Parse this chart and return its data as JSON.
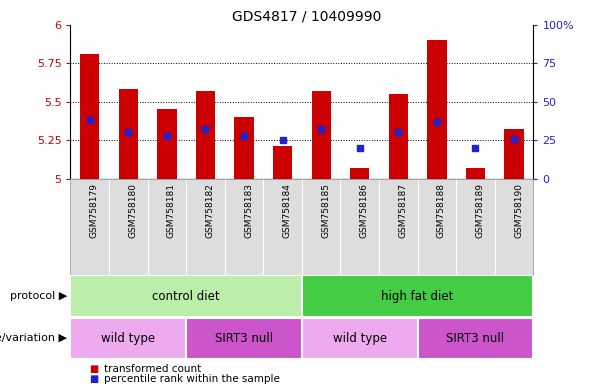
{
  "title": "GDS4817 / 10409990",
  "samples": [
    "GSM758179",
    "GSM758180",
    "GSM758181",
    "GSM758182",
    "GSM758183",
    "GSM758184",
    "GSM758185",
    "GSM758186",
    "GSM758187",
    "GSM758188",
    "GSM758189",
    "GSM758190"
  ],
  "bar_tops": [
    5.81,
    5.58,
    5.45,
    5.57,
    5.4,
    5.21,
    5.57,
    5.07,
    5.55,
    5.9,
    5.07,
    5.32
  ],
  "bar_base": 5.0,
  "blue_values_pct": [
    38,
    30,
    28,
    32,
    28,
    25,
    32,
    20,
    30,
    37,
    20,
    26
  ],
  "left_ylim": [
    5.0,
    6.0
  ],
  "right_ylim": [
    0,
    100
  ],
  "left_yticks": [
    5,
    5.25,
    5.5,
    5.75,
    6
  ],
  "left_yticklabels": [
    "5",
    "5.25",
    "5.5",
    "5.75",
    "6"
  ],
  "right_yticks": [
    0,
    25,
    50,
    75,
    100
  ],
  "right_yticklabels": [
    "0",
    "25",
    "50",
    "75",
    "100%"
  ],
  "hline_values": [
    5.25,
    5.5,
    5.75
  ],
  "bar_color": "#cc0000",
  "blue_color": "#2222cc",
  "protocol_labels": [
    {
      "text": "control diet",
      "start": 0,
      "end": 6,
      "color": "#bbeeaa"
    },
    {
      "text": "high fat diet",
      "start": 6,
      "end": 12,
      "color": "#44cc44"
    }
  ],
  "genotype_labels": [
    {
      "text": "wild type",
      "start": 0,
      "end": 3,
      "color": "#eeaaee"
    },
    {
      "text": "SIRT3 null",
      "start": 3,
      "end": 6,
      "color": "#cc55cc"
    },
    {
      "text": "wild type",
      "start": 6,
      "end": 9,
      "color": "#eeaaee"
    },
    {
      "text": "SIRT3 null",
      "start": 9,
      "end": 12,
      "color": "#cc55cc"
    }
  ],
  "legend_items": [
    {
      "label": "transformed count",
      "color": "#cc0000"
    },
    {
      "label": "percentile rank within the sample",
      "color": "#2222cc"
    }
  ],
  "protocol_row_label": "protocol",
  "genotype_row_label": "genotype/variation",
  "tick_label_color_left": "#cc0000",
  "tick_label_color_right": "#2222cc",
  "sample_bg_color": "#dddddd",
  "sample_border_color": "#aaaaaa"
}
